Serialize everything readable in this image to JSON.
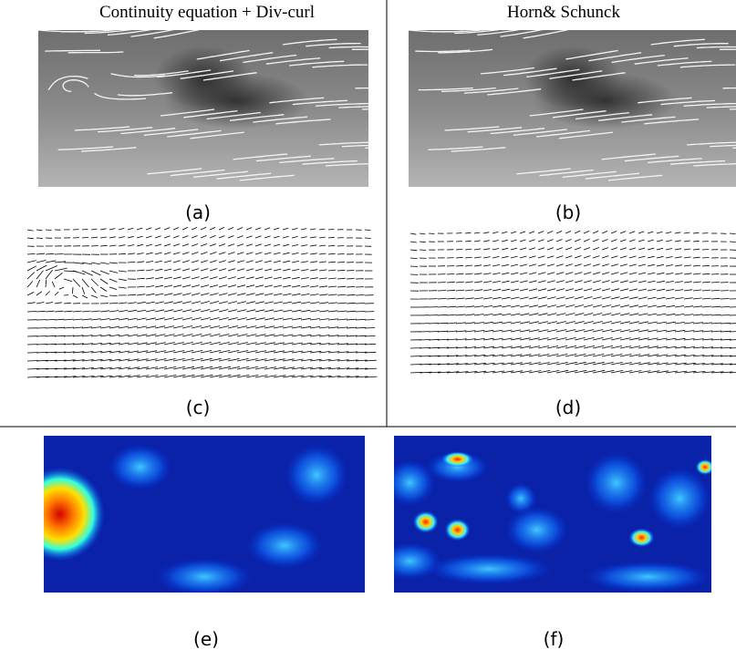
{
  "headers": [
    "Continuity equation + Div-curl",
    "Horn& Schunck"
  ],
  "labels": [
    "(a)",
    "(b)",
    "(c)",
    "(d)",
    "(e)",
    "(f)"
  ]
}
